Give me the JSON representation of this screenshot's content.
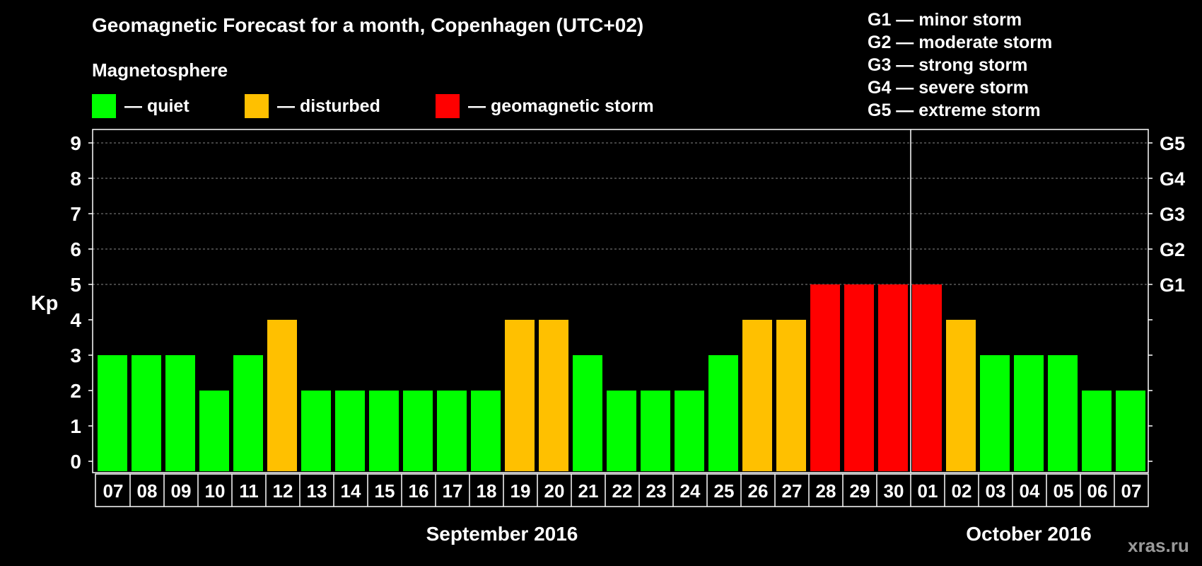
{
  "title": "Geomagnetic Forecast for a month, Copenhagen (UTC+02)",
  "magnetosphere_label": "Magnetosphere",
  "legend": [
    {
      "label": "— quiet",
      "color": "#00ff00"
    },
    {
      "label": "— disturbed",
      "color": "#ffc000"
    },
    {
      "label": "— geomagnetic storm",
      "color": "#ff0000"
    }
  ],
  "storm_levels": [
    {
      "label": "G1 — minor storm"
    },
    {
      "label": "G2 — moderate storm"
    },
    {
      "label": "G3 — strong storm"
    },
    {
      "label": "G4 — severe storm"
    },
    {
      "label": "G5 — extreme storm"
    }
  ],
  "watermark": "xras.ru",
  "chart_data": {
    "type": "bar",
    "title": "Geomagnetic Forecast for a month, Copenhagen (UTC+02)",
    "ylabel": "Kp",
    "ylim": [
      0,
      9
    ],
    "yticks": [
      "0",
      "1",
      "2",
      "3",
      "4",
      "5",
      "6",
      "7",
      "8",
      "9"
    ],
    "right_axis_labels": [
      {
        "kp": 5,
        "label": "G1"
      },
      {
        "kp": 6,
        "label": "G2"
      },
      {
        "kp": 7,
        "label": "G3"
      },
      {
        "kp": 8,
        "label": "G4"
      },
      {
        "kp": 9,
        "label": "G5"
      }
    ],
    "categories": [
      "07",
      "08",
      "09",
      "10",
      "11",
      "12",
      "13",
      "14",
      "15",
      "16",
      "17",
      "18",
      "19",
      "20",
      "21",
      "22",
      "23",
      "24",
      "25",
      "26",
      "27",
      "28",
      "29",
      "30",
      "01",
      "02",
      "03",
      "04",
      "05",
      "06",
      "07"
    ],
    "values": [
      3,
      3,
      3,
      2,
      3,
      4,
      2,
      2,
      2,
      2,
      2,
      2,
      4,
      4,
      3,
      2,
      2,
      2,
      3,
      4,
      4,
      5,
      5,
      5,
      5,
      4,
      3,
      3,
      3,
      2,
      2
    ],
    "month_labels": [
      {
        "label": "September 2016",
        "from_index": 0,
        "to_index": 23
      },
      {
        "label": "October 2016",
        "from_index": 24,
        "to_index": 30
      }
    ],
    "month_divider_after_index": 23,
    "colors": {
      "quiet": "#00ff00",
      "disturbed": "#ffc000",
      "storm": "#ff0000"
    },
    "thresholds": {
      "disturbed": 4,
      "storm": 5
    },
    "grid": "dashed horizontal lines at Kp 5-9"
  }
}
